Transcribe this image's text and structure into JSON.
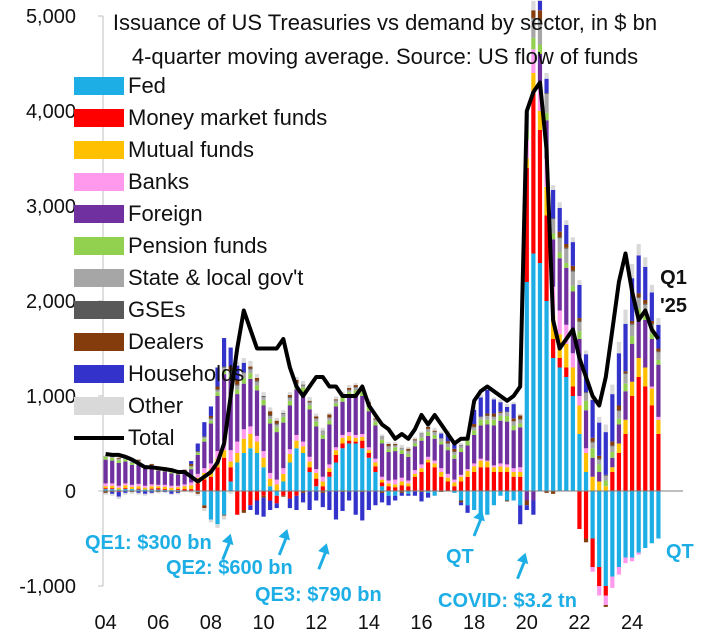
{
  "title": [
    "Issuance of US Treasuries vs demand by sector, in $ bn",
    "4-quarter moving average. Source: US flow of funds"
  ],
  "chart_data": {
    "type": "bar",
    "stacked": true,
    "title": "Issuance of US Treasuries vs demand by sector, in $ bn",
    "subtitle": "4-quarter moving average. Source: US flow of funds",
    "xlabel": "",
    "ylabel": "",
    "ylim": [
      -1000,
      5000
    ],
    "yticks": [
      -1000,
      0,
      1000,
      2000,
      3000,
      4000,
      5000
    ],
    "ytick_labels": [
      "-1,000",
      "0",
      "1,000",
      "2,000",
      "3,000",
      "4,000",
      "5,000"
    ],
    "xticks": [
      2004,
      2006,
      2008,
      2010,
      2012,
      2014,
      2016,
      2018,
      2020,
      2022,
      2024
    ],
    "xtick_labels": [
      "04",
      "06",
      "08",
      "10",
      "12",
      "14",
      "16",
      "18",
      "20",
      "22",
      "24"
    ],
    "legend_position": "top-left",
    "x": [
      2004.0,
      2004.25,
      2004.5,
      2004.75,
      2005.0,
      2005.25,
      2005.5,
      2005.75,
      2006.0,
      2006.25,
      2006.5,
      2006.75,
      2007.0,
      2007.25,
      2007.5,
      2007.75,
      2008.0,
      2008.25,
      2008.5,
      2008.75,
      2009.0,
      2009.25,
      2009.5,
      2009.75,
      2010.0,
      2010.25,
      2010.5,
      2010.75,
      2011.0,
      2011.25,
      2011.5,
      2011.75,
      2012.0,
      2012.25,
      2012.5,
      2012.75,
      2013.0,
      2013.25,
      2013.5,
      2013.75,
      2014.0,
      2014.25,
      2014.5,
      2014.75,
      2015.0,
      2015.25,
      2015.5,
      2015.75,
      2016.0,
      2016.25,
      2016.5,
      2016.75,
      2017.0,
      2017.25,
      2017.5,
      2017.75,
      2018.0,
      2018.25,
      2018.5,
      2018.75,
      2019.0,
      2019.25,
      2019.5,
      2019.75,
      2020.0,
      2020.25,
      2020.5,
      2020.75,
      2021.0,
      2021.25,
      2021.5,
      2021.75,
      2022.0,
      2022.25,
      2022.5,
      2022.75,
      2023.0,
      2023.25,
      2023.5,
      2023.75,
      2024.0,
      2024.25,
      2024.5,
      2024.75,
      2025.0
    ],
    "series": [
      {
        "name": "Fed",
        "color": "#1eaee6",
        "values": [
          20,
          20,
          15,
          20,
          20,
          15,
          15,
          15,
          15,
          10,
          10,
          10,
          5,
          0,
          -10,
          -150,
          -300,
          -350,
          -250,
          100,
          300,
          400,
          450,
          400,
          250,
          50,
          -50,
          100,
          300,
          450,
          400,
          200,
          50,
          0,
          150,
          300,
          450,
          500,
          500,
          450,
          350,
          200,
          50,
          -50,
          -50,
          0,
          -30,
          0,
          0,
          -20,
          -50,
          0,
          0,
          -20,
          -100,
          -150,
          -200,
          -250,
          -250,
          -150,
          -50,
          -100,
          -100,
          -150,
          2200,
          2500,
          2400,
          2000,
          1400,
          1300,
          1200,
          1000,
          600,
          200,
          -500,
          -800,
          -1000,
          -900,
          -800,
          -700,
          -700,
          -650,
          -600,
          -550,
          -500
        ]
      },
      {
        "name": "Money market funds",
        "color": "#ff0000",
        "values": [
          10,
          10,
          -10,
          10,
          0,
          10,
          0,
          10,
          15,
          10,
          0,
          10,
          15,
          20,
          80,
          120,
          150,
          250,
          350,
          150,
          -250,
          -200,
          -150,
          -100,
          -50,
          -100,
          -80,
          -50,
          -80,
          -50,
          0,
          50,
          80,
          50,
          50,
          80,
          50,
          30,
          20,
          80,
          50,
          60,
          40,
          50,
          40,
          60,
          50,
          150,
          200,
          300,
          250,
          150,
          100,
          50,
          100,
          150,
          200,
          250,
          250,
          200,
          200,
          200,
          150,
          150,
          1200,
          1700,
          1400,
          900,
          200,
          100,
          100,
          100,
          -400,
          -500,
          -300,
          -200,
          -100,
          200,
          400,
          600,
          1000,
          1200,
          1100,
          900,
          600
        ]
      },
      {
        "name": "Mutual funds",
        "color": "#ffc000",
        "values": [
          20,
          25,
          20,
          30,
          25,
          25,
          20,
          25,
          20,
          25,
          25,
          20,
          30,
          40,
          60,
          70,
          80,
          90,
          80,
          60,
          100,
          150,
          150,
          120,
          100,
          80,
          70,
          80,
          90,
          80,
          70,
          60,
          60,
          50,
          40,
          50,
          60,
          50,
          40,
          40,
          30,
          40,
          30,
          30,
          30,
          40,
          30,
          30,
          40,
          30,
          40,
          50,
          40,
          40,
          50,
          60,
          60,
          70,
          60,
          50,
          60,
          50,
          50,
          50,
          100,
          200,
          200,
          300,
          250,
          250,
          250,
          200,
          300,
          200,
          150,
          100,
          50,
          50,
          100,
          150,
          150,
          200,
          200,
          180,
          150
        ]
      },
      {
        "name": "Banks",
        "color": "#ff99ee",
        "values": [
          30,
          25,
          20,
          20,
          20,
          25,
          20,
          20,
          15,
          20,
          20,
          15,
          20,
          30,
          40,
          50,
          60,
          80,
          100,
          120,
          120,
          100,
          80,
          60,
          70,
          60,
          50,
          60,
          50,
          60,
          50,
          50,
          40,
          50,
          40,
          30,
          30,
          40,
          30,
          30,
          30,
          40,
          30,
          30,
          50,
          40,
          30,
          40,
          40,
          30,
          30,
          40,
          40,
          30,
          20,
          20,
          30,
          20,
          10,
          20,
          30,
          30,
          40,
          50,
          200,
          250,
          300,
          300,
          300,
          250,
          200,
          150,
          100,
          50,
          -50,
          -100,
          -100,
          -120,
          -80,
          -60,
          -40,
          -20,
          0,
          20,
          30
        ]
      },
      {
        "name": "Foreign",
        "color": "#7030a0",
        "values": [
          250,
          240,
          240,
          230,
          210,
          200,
          180,
          170,
          150,
          140,
          130,
          120,
          120,
          140,
          200,
          280,
          420,
          580,
          700,
          750,
          500,
          480,
          500,
          480,
          480,
          520,
          500,
          480,
          460,
          480,
          520,
          500,
          450,
          400,
          420,
          430,
          350,
          380,
          420,
          400,
          380,
          350,
          350,
          300,
          300,
          250,
          250,
          250,
          250,
          220,
          230,
          250,
          250,
          220,
          240,
          250,
          300,
          350,
          380,
          420,
          450,
          450,
          400,
          420,
          -100,
          -100,
          300,
          400,
          500,
          550,
          600,
          650,
          600,
          400,
          200,
          100,
          0,
          100,
          200,
          300,
          400,
          450,
          500,
          500,
          550
        ]
      },
      {
        "name": "Pension funds",
        "color": "#92d050",
        "values": [
          30,
          30,
          30,
          25,
          20,
          20,
          20,
          15,
          15,
          20,
          20,
          15,
          15,
          20,
          20,
          30,
          30,
          40,
          40,
          40,
          50,
          60,
          60,
          50,
          60,
          50,
          50,
          60,
          50,
          40,
          50,
          40,
          50,
          40,
          40,
          30,
          40,
          40,
          50,
          40,
          40,
          40,
          40,
          30,
          40,
          40,
          30,
          30,
          30,
          40,
          40,
          30,
          30,
          40,
          40,
          50,
          50,
          60,
          50,
          60,
          50,
          60,
          50,
          40,
          100,
          120,
          100,
          80,
          60,
          60,
          50,
          60,
          80,
          100,
          100,
          80,
          60,
          60,
          60,
          80,
          80,
          70,
          60,
          60,
          50
        ]
      },
      {
        "name": "State & local gov't",
        "color": "#a6a6a6",
        "values": [
          10,
          10,
          15,
          15,
          15,
          20,
          20,
          15,
          10,
          10,
          10,
          5,
          5,
          10,
          10,
          15,
          20,
          20,
          30,
          40,
          40,
          50,
          40,
          40,
          30,
          30,
          30,
          30,
          30,
          20,
          20,
          30,
          30,
          40,
          30,
          30,
          30,
          20,
          30,
          30,
          20,
          20,
          30,
          30,
          20,
          20,
          30,
          30,
          40,
          30,
          30,
          30,
          40,
          30,
          30,
          20,
          30,
          30,
          40,
          30,
          30,
          40,
          40,
          40,
          150,
          200,
          250,
          200,
          150,
          150,
          150,
          150,
          100,
          80,
          60,
          50,
          50,
          60,
          80,
          100,
          120,
          110,
          100,
          90,
          80
        ]
      },
      {
        "name": "GSEs",
        "color": "#595959",
        "values": [
          0,
          5,
          0,
          5,
          0,
          5,
          0,
          5,
          0,
          5,
          0,
          5,
          5,
          5,
          10,
          10,
          10,
          10,
          10,
          10,
          10,
          10,
          10,
          10,
          10,
          10,
          10,
          10,
          10,
          10,
          10,
          10,
          5,
          5,
          5,
          5,
          5,
          5,
          5,
          5,
          5,
          5,
          5,
          5,
          5,
          5,
          5,
          5,
          5,
          5,
          5,
          5,
          5,
          5,
          5,
          5,
          5,
          5,
          5,
          5,
          5,
          5,
          5,
          5,
          10,
          10,
          10,
          10,
          10,
          10,
          10,
          10,
          10,
          10,
          10,
          10,
          10,
          10,
          10,
          10,
          10,
          10,
          10,
          10,
          10
        ]
      },
      {
        "name": "Dealers",
        "color": "#843c0c",
        "values": [
          -20,
          -10,
          10,
          20,
          -10,
          10,
          0,
          10,
          -10,
          10,
          0,
          -10,
          10,
          20,
          -20,
          -30,
          20,
          30,
          -10,
          40,
          50,
          -30,
          20,
          30,
          -20,
          40,
          30,
          -10,
          20,
          30,
          -20,
          10,
          20,
          -20,
          30,
          10,
          -10,
          20,
          20,
          -10,
          30,
          10,
          -20,
          20,
          10,
          -20,
          20,
          10,
          -10,
          20,
          10,
          -10,
          20,
          30,
          -20,
          20,
          30,
          -10,
          20,
          30,
          10,
          -10,
          30,
          40,
          -50,
          80,
          100,
          -20,
          -30,
          60,
          40,
          50,
          30,
          -40,
          40,
          30,
          -20,
          40,
          50,
          20,
          30,
          40,
          40,
          30,
          30
        ]
      },
      {
        "name": "Households",
        "color": "#3333cc",
        "values": [
          0,
          -20,
          -50,
          -20,
          0,
          -20,
          -30,
          -20,
          0,
          -10,
          -30,
          -10,
          0,
          30,
          80,
          150,
          100,
          200,
          300,
          200,
          150,
          100,
          -50,
          -150,
          -200,
          -100,
          -50,
          0,
          -100,
          -150,
          -100,
          -200,
          -100,
          -150,
          -200,
          -300,
          -200,
          -100,
          -250,
          -300,
          -200,
          -150,
          -100,
          -100,
          -50,
          -30,
          -20,
          -50,
          -100,
          -50,
          0,
          50,
          80,
          50,
          -30,
          -80,
          150,
          200,
          250,
          150,
          100,
          50,
          150,
          -200,
          -50,
          -150,
          100,
          150,
          300,
          250,
          200,
          250,
          350,
          400,
          400,
          350,
          450,
          500,
          550,
          500,
          450,
          400,
          350,
          300,
          250
        ]
      },
      {
        "name": "Other",
        "color": "#d9d9d9",
        "values": [
          -20,
          -20,
          -25,
          -20,
          -20,
          -20,
          -20,
          -15,
          -15,
          -10,
          -10,
          -15,
          -10,
          -20,
          -20,
          -30,
          -30,
          -40,
          -40,
          -30,
          40,
          50,
          60,
          40,
          40,
          40,
          30,
          30,
          30,
          30,
          40,
          40,
          30,
          30,
          20,
          30,
          30,
          30,
          20,
          20,
          30,
          30,
          20,
          20,
          20,
          30,
          20,
          20,
          20,
          30,
          30,
          20,
          30,
          30,
          20,
          20,
          30,
          30,
          30,
          20,
          30,
          30,
          20,
          20,
          50,
          100,
          100,
          60,
          50,
          60,
          50,
          50,
          50,
          40,
          40,
          60,
          80,
          100,
          120,
          150,
          150,
          120,
          100,
          80,
          70
        ]
      }
    ],
    "total": {
      "name": "Total",
      "color": "#000000",
      "values": [
        390,
        380,
        380,
        360,
        330,
        290,
        250,
        250,
        240,
        230,
        220,
        200,
        200,
        150,
        100,
        150,
        200,
        300,
        500,
        1000,
        1500,
        1900,
        1700,
        1500,
        1500,
        1500,
        1500,
        1600,
        1300,
        1100,
        1000,
        1100,
        1200,
        1200,
        1100,
        1100,
        1000,
        1000,
        1000,
        1100,
        900,
        800,
        700,
        650,
        550,
        600,
        550,
        650,
        800,
        700,
        800,
        700,
        600,
        500,
        550,
        550,
        950,
        1050,
        1100,
        1050,
        1000,
        950,
        1000,
        1100,
        4000,
        4200,
        4300,
        3600,
        1800,
        1500,
        1600,
        1700,
        1400,
        1200,
        1000,
        900,
        1200,
        1700,
        2200,
        2500,
        2100,
        1800,
        1900,
        1700,
        1600
      ]
    }
  },
  "legend": [
    "Fed",
    "Money market funds",
    "Mutual funds",
    "Banks",
    "Foreign",
    "Pension funds",
    "State & local gov't",
    "GSEs",
    "Dealers",
    "Households",
    "Other",
    "Total"
  ],
  "annotations": [
    {
      "label": "QE1: $300 bn",
      "arrow_x": 2008.75,
      "arrow_y": -450
    },
    {
      "label": "QE2: $600 bn",
      "arrow_x": 2010.9,
      "arrow_y": -400
    },
    {
      "label": "QE3: $790 bn",
      "arrow_x": 2012.4,
      "arrow_y": -550
    },
    {
      "label": "QT",
      "arrow_x": 2018.3,
      "arrow_y": -200
    },
    {
      "label": "COVID: $3.2 tn",
      "arrow_x": 2019.95,
      "arrow_y": -650
    },
    {
      "label": "QT"
    }
  ],
  "end_label": [
    "Q1",
    "'25"
  ]
}
